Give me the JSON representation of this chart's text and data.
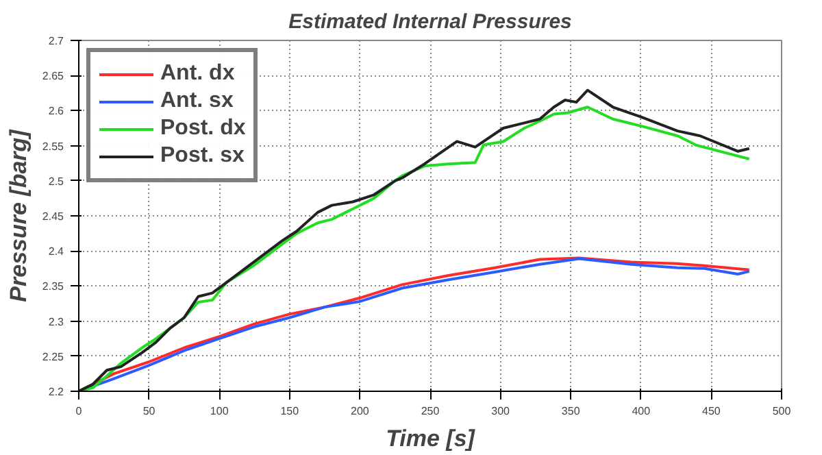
{
  "chart_data": {
    "type": "line",
    "title": "Estimated Internal Pressures",
    "xlabel": "Time [s]",
    "ylabel": "Pressure [barg]",
    "xlim": [
      0,
      500
    ],
    "ylim": [
      2.2,
      2.7
    ],
    "xticks": [
      0,
      50,
      100,
      150,
      200,
      250,
      300,
      350,
      400,
      450,
      500
    ],
    "yticks": [
      2.2,
      2.25,
      2.3,
      2.35,
      2.4,
      2.45,
      2.5,
      2.55,
      2.6,
      2.65,
      2.7
    ],
    "grid": true,
    "legend": "top left",
    "line_style": "solid",
    "series": [
      {
        "name": "Ant. dx",
        "color": "#ff2a2a",
        "x": [
          0,
          25,
          50,
          75,
          100,
          125,
          150,
          175,
          200,
          230,
          263,
          296,
          328,
          356,
          393,
          426,
          445,
          477
        ],
        "values": [
          2.2,
          2.225,
          2.242,
          2.262,
          2.278,
          2.296,
          2.31,
          2.32,
          2.333,
          2.352,
          2.365,
          2.376,
          2.388,
          2.39,
          2.384,
          2.382,
          2.379,
          2.373
        ]
      },
      {
        "name": "Ant. sx",
        "color": "#2a5cff",
        "x": [
          0,
          25,
          50,
          75,
          100,
          125,
          150,
          175,
          200,
          230,
          263,
          296,
          328,
          356,
          393,
          426,
          445,
          469,
          477
        ],
        "values": [
          2.2,
          2.218,
          2.237,
          2.258,
          2.275,
          2.292,
          2.305,
          2.32,
          2.328,
          2.347,
          2.359,
          2.37,
          2.381,
          2.389,
          2.381,
          2.376,
          2.375,
          2.367,
          2.371
        ]
      },
      {
        "name": "Post. dx",
        "color": "#22dd22",
        "x": [
          0,
          10,
          20,
          30,
          45,
          55,
          65,
          75,
          85,
          95,
          105,
          125,
          145,
          155,
          170,
          180,
          195,
          210,
          225,
          230,
          246,
          263,
          282,
          288,
          302,
          317,
          328,
          338,
          348,
          362,
          380,
          400,
          426,
          439,
          458,
          477
        ],
        "values": [
          2.2,
          2.205,
          2.222,
          2.24,
          2.262,
          2.275,
          2.29,
          2.305,
          2.327,
          2.33,
          2.355,
          2.38,
          2.41,
          2.425,
          2.44,
          2.445,
          2.46,
          2.475,
          2.5,
          2.507,
          2.521,
          2.524,
          2.526,
          2.551,
          2.556,
          2.575,
          2.585,
          2.595,
          2.597,
          2.605,
          2.588,
          2.578,
          2.564,
          2.551,
          2.541,
          2.531
        ]
      },
      {
        "name": "Post. sx",
        "color": "#222222",
        "x": [
          0,
          10,
          20,
          30,
          45,
          55,
          65,
          75,
          85,
          95,
          105,
          125,
          145,
          155,
          170,
          180,
          195,
          210,
          225,
          230,
          246,
          269,
          282,
          302,
          328,
          338,
          346,
          354,
          362,
          380,
          400,
          426,
          442,
          469,
          477
        ],
        "values": [
          2.2,
          2.21,
          2.23,
          2.235,
          2.255,
          2.27,
          2.29,
          2.305,
          2.335,
          2.34,
          2.355,
          2.385,
          2.415,
          2.428,
          2.455,
          2.465,
          2.47,
          2.48,
          2.5,
          2.504,
          2.524,
          2.556,
          2.548,
          2.575,
          2.588,
          2.605,
          2.615,
          2.612,
          2.629,
          2.605,
          2.591,
          2.571,
          2.564,
          2.542,
          2.546
        ]
      }
    ]
  }
}
